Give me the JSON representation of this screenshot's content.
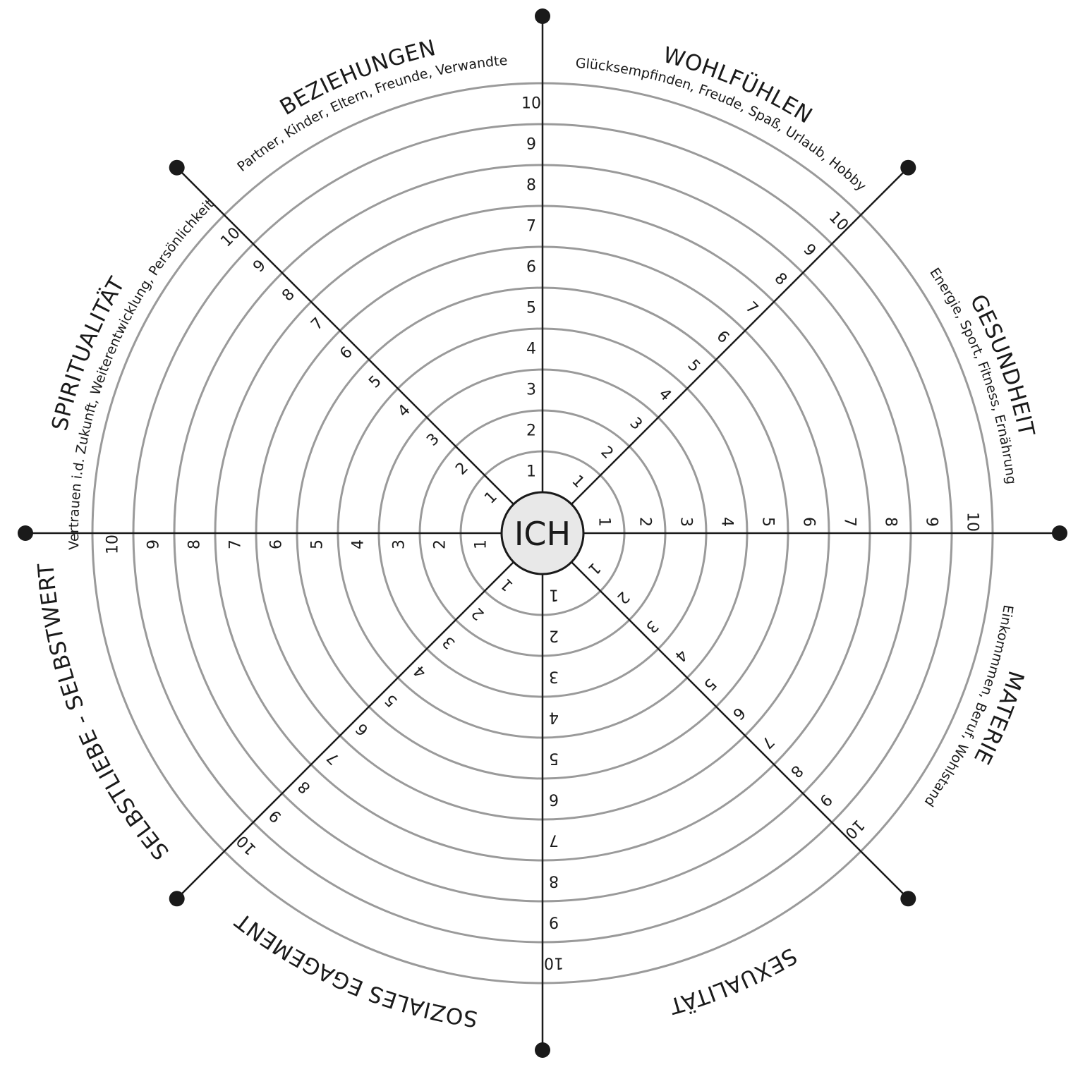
{
  "center_label": "ICH",
  "scale": [
    "1",
    "2",
    "3",
    "4",
    "5",
    "6",
    "7",
    "8",
    "9",
    "10"
  ],
  "categories": [
    {
      "title": "WOHLFÜHLEN",
      "subtitle": "Glücksempfinden, Freude, Spaß, Urlaub, Hobby"
    },
    {
      "title": "GESUNDHEIT",
      "subtitle": "Energie, Sport, Fitness, Ernährung"
    },
    {
      "title": "MATERIE",
      "subtitle": "Einkommmen, Beruf, Wohlstand"
    },
    {
      "title": "SEXUALITÄT",
      "subtitle": ""
    },
    {
      "title": "SOZIALES EGAGEMENT",
      "subtitle": ""
    },
    {
      "title": "SELBSTLIEBE - SELBSTWERT",
      "subtitle": ""
    },
    {
      "title": "SPIRITUALITÄT",
      "subtitle": "Vertrauen i.d. Zukunft, Weiterentwicklung, Persönlichkeit"
    },
    {
      "title": "BEZIEHUNGEN",
      "subtitle": "Partner, Kinder, Eltern, Freunde, Verwandte"
    }
  ],
  "colors": {
    "ring": "#9a9a9a",
    "line": "#1a1a1a",
    "center_fill": "#e8e8e8"
  }
}
